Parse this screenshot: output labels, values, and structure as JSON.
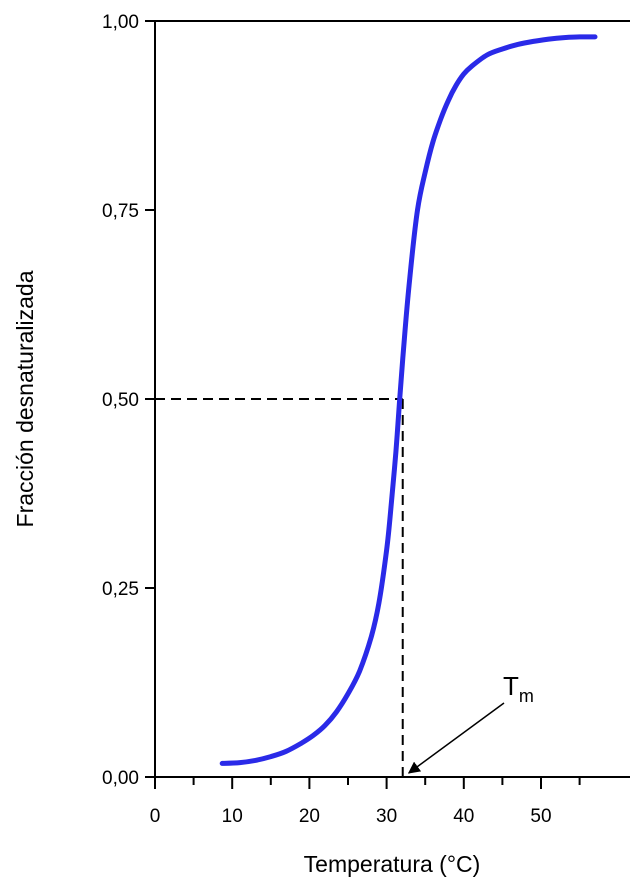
{
  "chart_data": {
    "type": "line",
    "xlabel": "Temperatura (°C)",
    "ylabel": "Fracción desnaturalizada",
    "xlim": [
      0,
      58
    ],
    "ylim": [
      0,
      1
    ],
    "x_ticks": [
      0,
      10,
      20,
      30,
      40,
      50
    ],
    "x_tick_labels": [
      "0",
      "10",
      "20",
      "30",
      "40",
      "50"
    ],
    "y_ticks": [
      0,
      0.25,
      0.5,
      0.75,
      1
    ],
    "y_tick_labels": [
      "0,00",
      "0,25",
      "0,50",
      "0,75",
      "1,00"
    ],
    "grid": false,
    "series": [
      {
        "color": "#2a2ae8",
        "x": [
          8.7,
          11,
          13,
          15,
          17,
          19,
          20.5,
          22,
          23.5,
          25,
          26.5,
          28,
          29,
          30,
          30.6,
          31.2,
          31.7,
          32.3,
          33,
          34,
          35,
          36,
          37,
          38,
          39,
          40,
          41,
          43,
          45,
          47,
          49,
          51,
          53,
          55,
          57
        ],
        "y": [
          0.018,
          0.019,
          0.022,
          0.027,
          0.034,
          0.045,
          0.055,
          0.068,
          0.086,
          0.11,
          0.14,
          0.185,
          0.23,
          0.3,
          0.36,
          0.43,
          0.5,
          0.58,
          0.66,
          0.75,
          0.8,
          0.84,
          0.87,
          0.895,
          0.915,
          0.93,
          0.94,
          0.955,
          0.963,
          0.969,
          0.973,
          0.976,
          0.978,
          0.979,
          0.979
        ]
      }
    ],
    "annotations": [
      {
        "label": "T",
        "subscript": "m",
        "x": 31.7,
        "y": 0.5,
        "style": "dashed guide lines to both axes, arrow pointing at Tm on x-axis"
      }
    ]
  }
}
